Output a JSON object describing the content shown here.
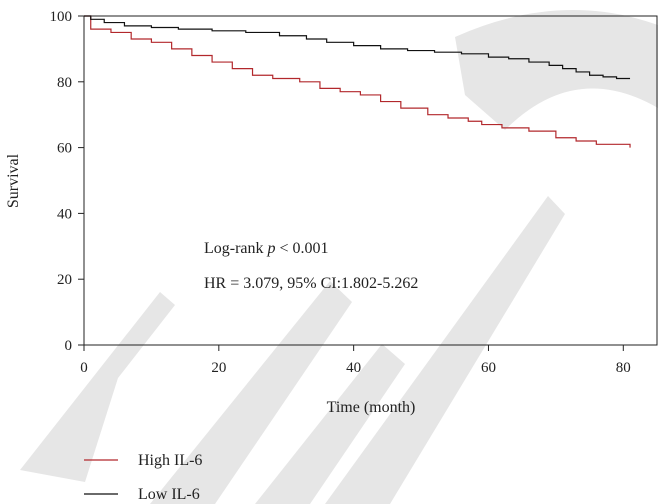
{
  "chart_data": {
    "type": "line",
    "title": "",
    "xlabel": "Time (month)",
    "ylabel": "Survival",
    "xlim": [
      0,
      85
    ],
    "ylim": [
      0,
      100
    ],
    "xticks": [
      0,
      20,
      40,
      60,
      80
    ],
    "yticks": [
      0,
      20,
      40,
      60,
      80,
      100
    ],
    "grid": false,
    "legend_position": "bottom-left",
    "annotations": {
      "logrank_prefix": "Log-rank ",
      "logrank_p": "p",
      "logrank_suffix": " < 0.001",
      "hr": "HR = 3.079, 95% CI:1.802-5.262"
    },
    "watermark": "RETRACTED",
    "series": [
      {
        "name": "High IL-6",
        "color": "#b2282c",
        "x": [
          0,
          1,
          4,
          7,
          10,
          13,
          16,
          19,
          22,
          25,
          28,
          32,
          35,
          38,
          41,
          44,
          47,
          51,
          54,
          57,
          59,
          62,
          66,
          70,
          73,
          76,
          79,
          81
        ],
        "y": [
          100,
          96,
          95,
          93,
          92,
          90,
          88,
          86,
          84,
          82,
          81,
          80,
          78,
          77,
          76,
          74,
          72,
          70,
          69,
          68,
          67,
          66,
          65,
          63,
          62,
          61,
          61,
          60
        ]
      },
      {
        "name": "Low IL-6",
        "color": "#111111",
        "x": [
          0,
          1,
          3,
          6,
          10,
          14,
          19,
          24,
          29,
          33,
          36,
          40,
          44,
          48,
          52,
          56,
          60,
          63,
          66,
          69,
          71,
          73,
          75,
          77,
          79,
          81
        ],
        "y": [
          100,
          99,
          98,
          97,
          96.5,
          96,
          95.5,
          95,
          94,
          93,
          92,
          91,
          90,
          89.5,
          89,
          88.5,
          87.5,
          87,
          86,
          85,
          84,
          83,
          82,
          81.5,
          81,
          81
        ]
      }
    ]
  }
}
